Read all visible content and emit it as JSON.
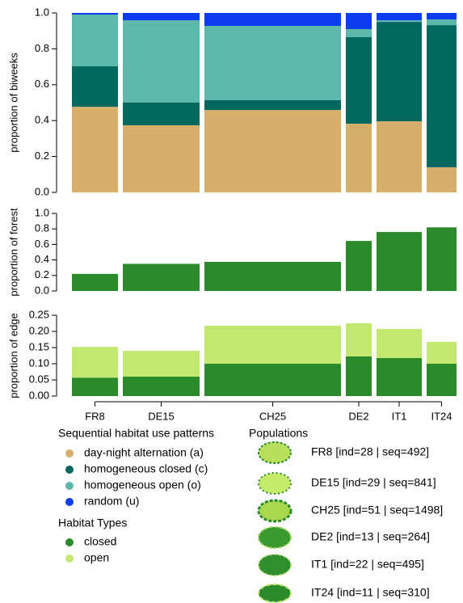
{
  "chart_data": [
    {
      "type": "bar",
      "stacked": true,
      "ylabel": "proportion of biweeks",
      "legend_title": "Sequential habitat use patterns",
      "ylim": [
        0,
        1
      ],
      "yticks": [
        {
          "value": 0,
          "label": "0.0"
        },
        {
          "value": 0.2,
          "label": "0.2"
        },
        {
          "value": 0.4,
          "label": "0.4"
        },
        {
          "value": 0.6,
          "label": "0.6"
        },
        {
          "value": 0.8,
          "label": "0.8"
        },
        {
          "value": 1,
          "label": "1.0"
        }
      ],
      "series": [
        {
          "name": "day-night alternation (a)",
          "color": "#d6b06a",
          "values": [
            0.477,
            0.374,
            0.459,
            0.383,
            0.396,
            0.14
          ]
        },
        {
          "name": "homogeneous closed (c)",
          "color": "#02675f",
          "values": [
            0.226,
            0.126,
            0.055,
            0.482,
            0.554,
            0.792
          ]
        },
        {
          "name": "homogeneous open (o)",
          "color": "#5bb8ab",
          "values": [
            0.288,
            0.459,
            0.414,
            0.045,
            0.009,
            0.032
          ]
        },
        {
          "name": "random (u)",
          "color": "#0b3cf0",
          "values": [
            0.009,
            0.041,
            0.072,
            0.09,
            0.041,
            0.036
          ]
        }
      ]
    },
    {
      "type": "bar",
      "stacked": true,
      "ylabel": "proportion of forest",
      "ylim": [
        0,
        1
      ],
      "yticks": [
        {
          "value": 0,
          "label": "0.0"
        },
        {
          "value": 0.2,
          "label": "0.2"
        },
        {
          "value": 0.4,
          "label": "0.4"
        },
        {
          "value": 0.6,
          "label": "0.6"
        },
        {
          "value": 0.8,
          "label": "0.8"
        },
        {
          "value": 1,
          "label": "1.0"
        }
      ],
      "series": [
        {
          "color": "#2b8b2b",
          "values": [
            0.22,
            0.35,
            0.375,
            0.645,
            0.76,
            0.82
          ]
        }
      ]
    },
    {
      "type": "bar",
      "stacked": true,
      "ylabel": "proportion of edge",
      "legend_title": "Habitat Types",
      "categories": [
        "FR8",
        "DE15",
        "CH25",
        "DE2",
        "IT1",
        "IT24"
      ],
      "ylim": [
        0,
        0.25
      ],
      "yticks": [
        {
          "value": 0,
          "label": "0.00"
        },
        {
          "value": 0.05,
          "label": "0.05"
        },
        {
          "value": 0.1,
          "label": "0.10"
        },
        {
          "value": 0.15,
          "label": "0.15"
        },
        {
          "value": 0.2,
          "label": "0.20"
        },
        {
          "value": 0.25,
          "label": "0.25"
        }
      ],
      "series": [
        {
          "name": "closed",
          "color": "#2b8b2b",
          "values": [
            0.057,
            0.06,
            0.1,
            0.1225,
            0.1175,
            0.1
          ]
        },
        {
          "name": "open",
          "color": "#c2e870",
          "values": [
            0.095,
            0.08,
            0.1175,
            0.1025,
            0.09,
            0.0675
          ]
        }
      ]
    }
  ],
  "populations": {
    "title": "Populations",
    "items": [
      "FR8 [ind=28 | seq=492]",
      "DE15 [ind=29 | seq=841]",
      "CH25 [ind=51 | seq=1498]",
      "DE2 [ind=13 | seq=264]",
      "IT1 [ind=22 | seq=495]",
      "IT24 [ind=11 | seq=310]"
    ]
  }
}
